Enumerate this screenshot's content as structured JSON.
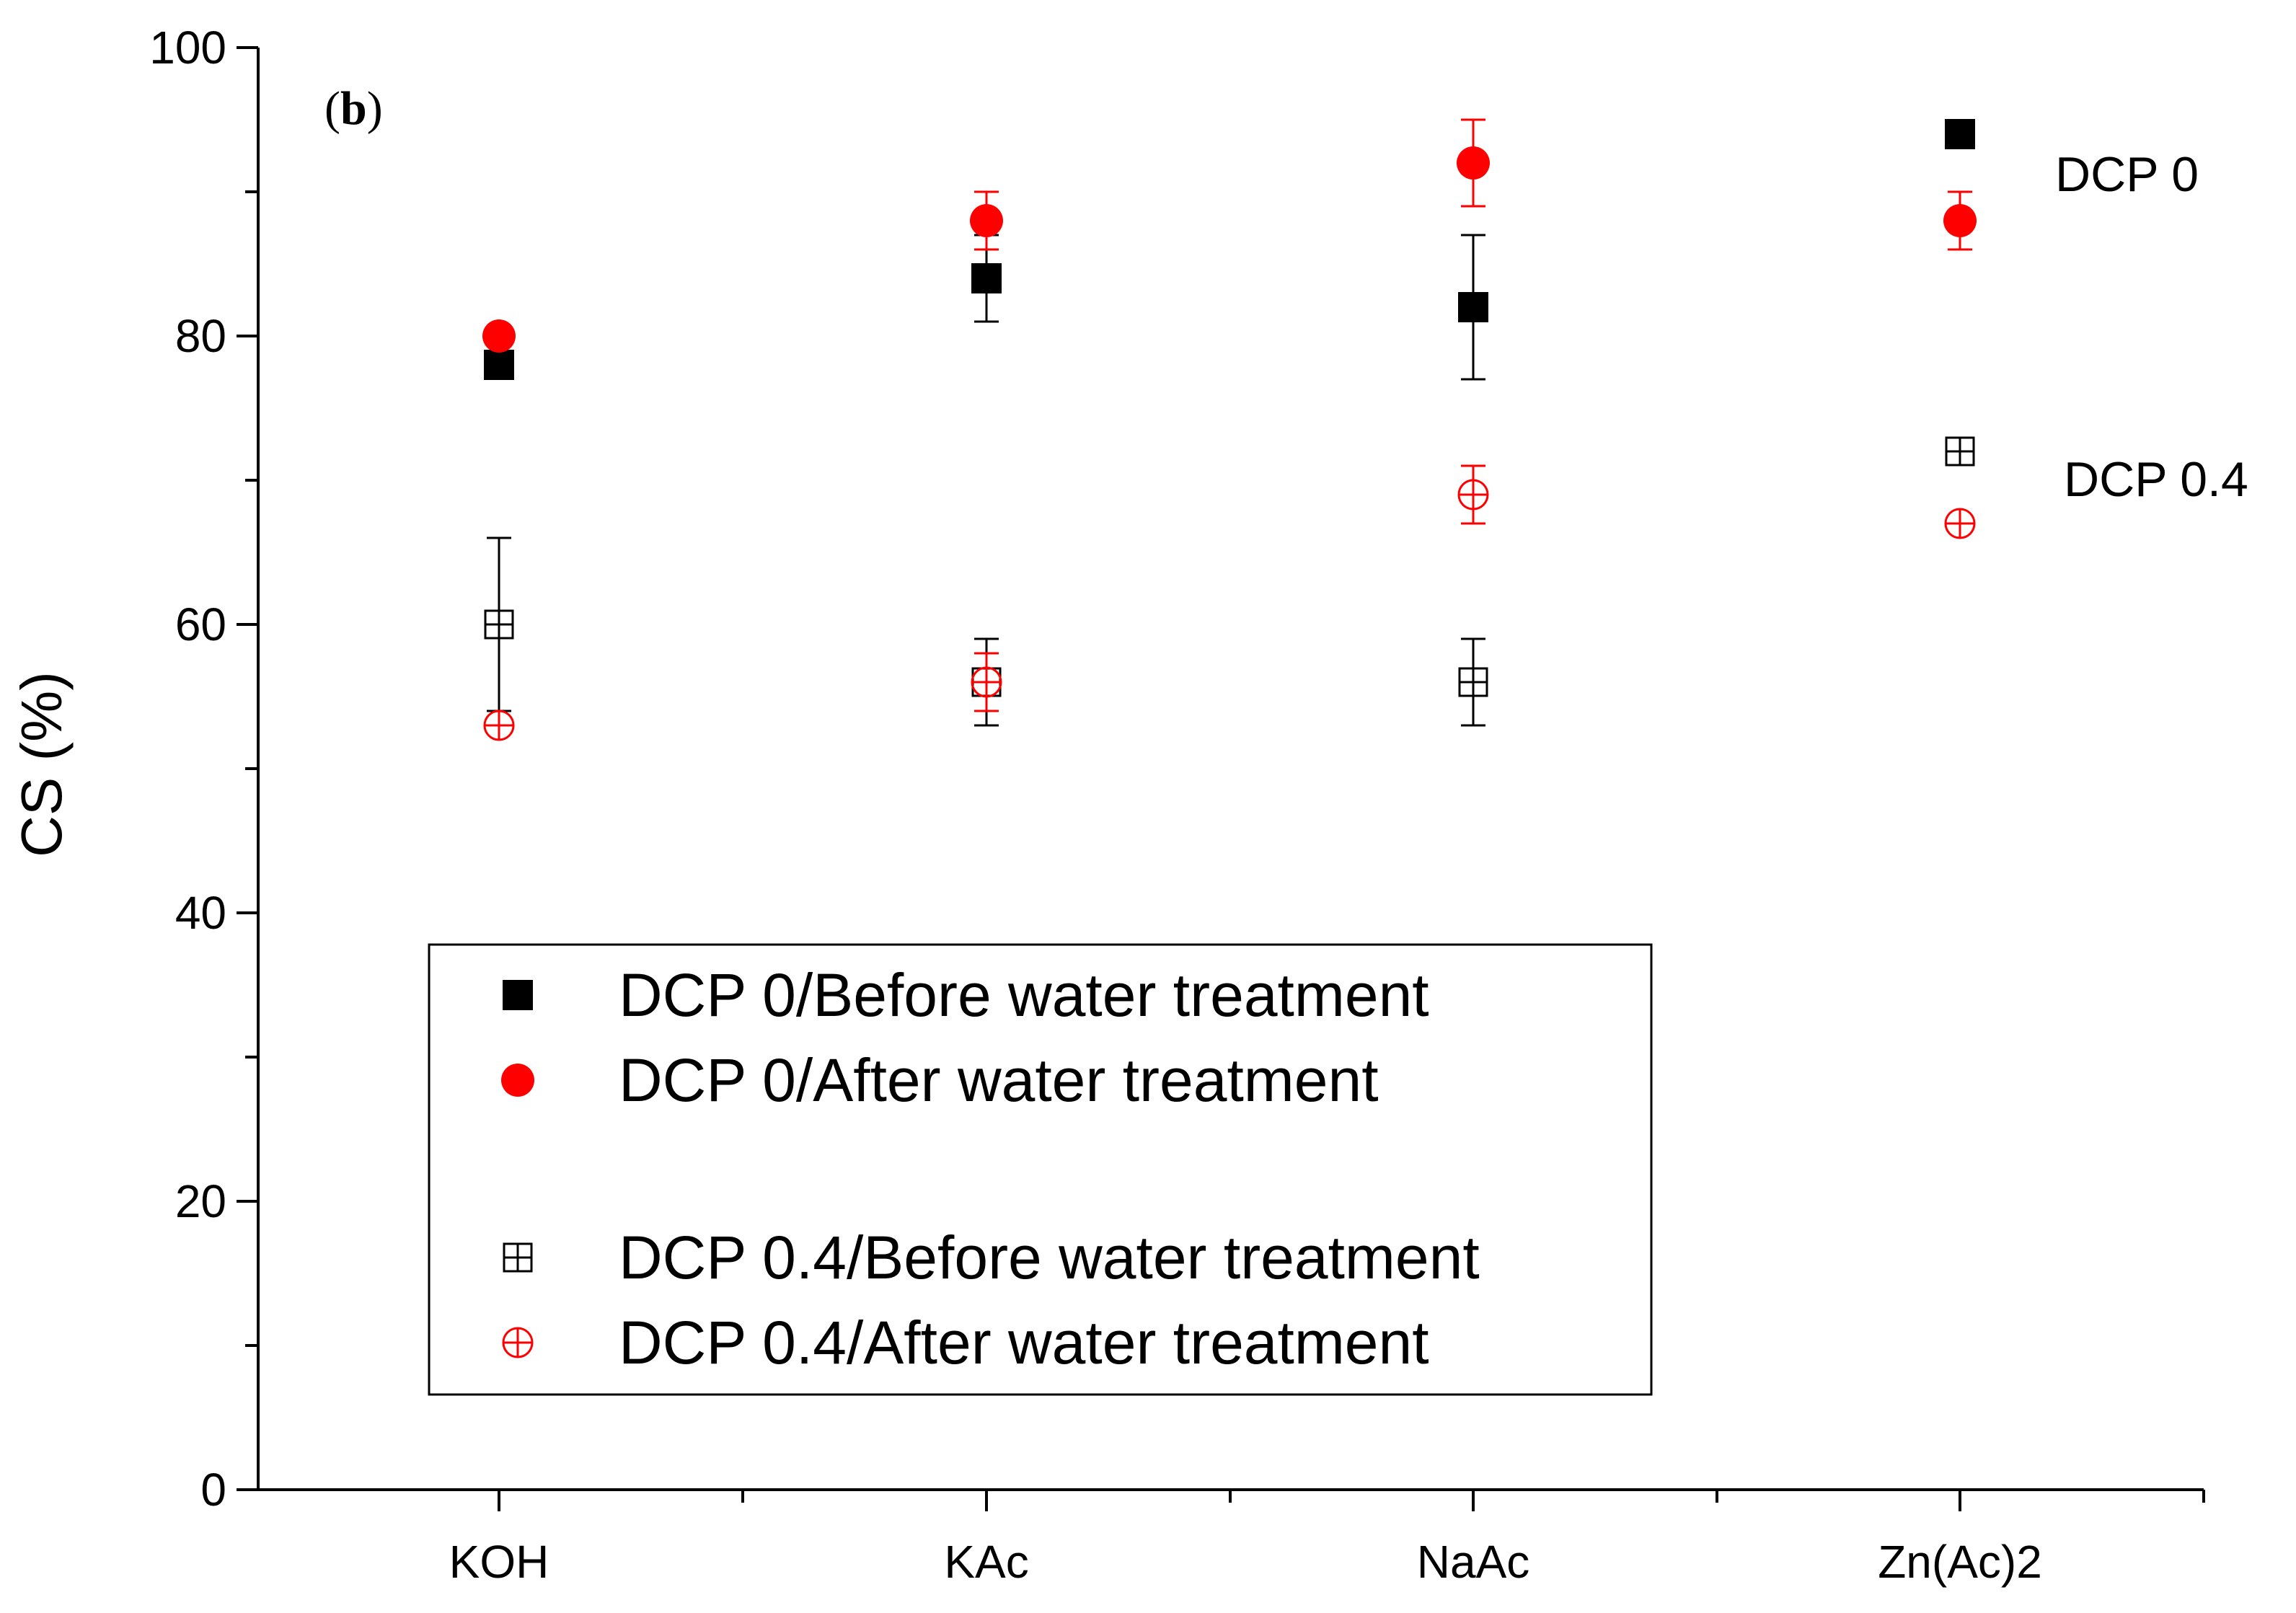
{
  "chart_data": {
    "type": "scatter",
    "panel_label": "b",
    "ylabel": "CS (%)",
    "xlabel": "",
    "ylim": [
      0,
      100
    ],
    "yticks": [
      0,
      20,
      40,
      60,
      80,
      100
    ],
    "categories": [
      "KOH",
      "KAc",
      "NaAc",
      "Zn(Ac)2"
    ],
    "series": [
      {
        "name": "DCP 0/Before water treatment",
        "marker": "filled-square",
        "color": "#000000",
        "values": [
          78,
          84,
          82,
          94
        ],
        "errors": [
          null,
          3,
          5,
          null
        ]
      },
      {
        "name": "DCP 0/After water treatment",
        "marker": "filled-circle",
        "color": "#ff0000",
        "values": [
          80,
          88,
          92,
          88
        ],
        "errors": [
          null,
          2,
          3,
          2
        ]
      },
      {
        "name": "DCP 0.4/Before water treatment",
        "marker": "open-square-plus",
        "color": "#000000",
        "values": [
          60,
          56,
          56,
          72
        ],
        "errors": [
          6,
          3,
          3,
          null
        ]
      },
      {
        "name": "DCP 0.4/After water treatment",
        "marker": "open-circle-plus",
        "color": "#ff0000",
        "values": [
          53,
          56,
          69,
          67
        ],
        "errors": [
          null,
          2,
          2,
          null
        ]
      }
    ],
    "annotations": [
      "DCP 0",
      "DCP 0.4"
    ],
    "legend_position": "lower-center"
  }
}
